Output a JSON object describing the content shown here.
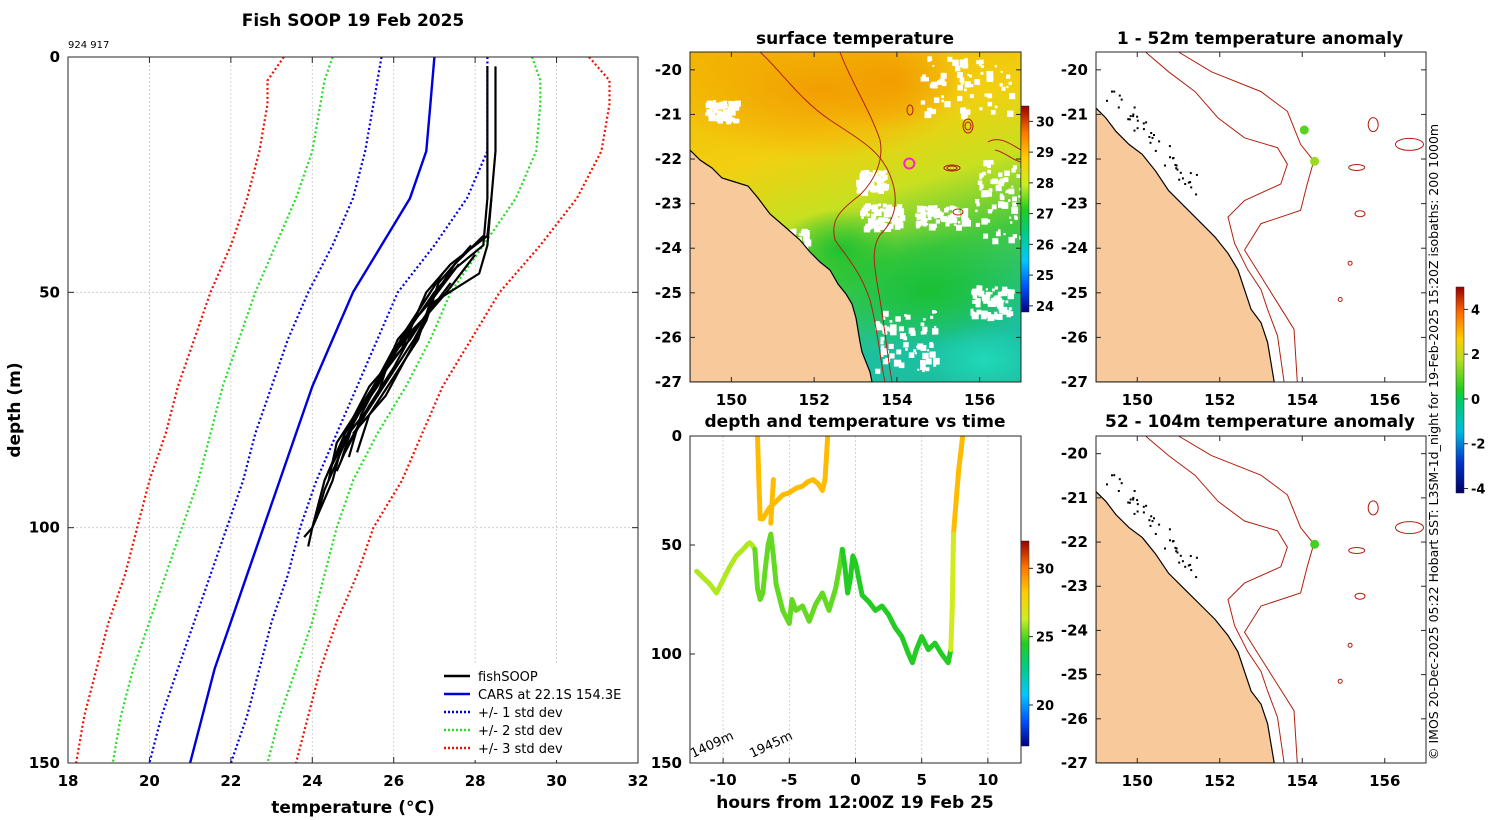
{
  "chart_data": [
    {
      "id": "profile",
      "type": "line",
      "title": "Fish SOOP 19 Feb 2025",
      "subtitle": "924 917",
      "xlabel": "temperature (°C)",
      "ylabel": "depth (m)",
      "xlim": [
        18,
        32
      ],
      "ylim": [
        150,
        0
      ],
      "xticks": [
        18,
        20,
        22,
        24,
        26,
        28,
        30,
        32
      ],
      "yticks": [
        0,
        50,
        100,
        150
      ],
      "grid": true,
      "legend": {
        "placement": "bottom-right",
        "entries": [
          {
            "label": "fishSOOP",
            "color": "#000000",
            "style": "solid"
          },
          {
            "label": "CARS at 22.1S 154.3E",
            "color": "#0000dd",
            "style": "solid"
          },
          {
            "label": "+/- 1 std dev",
            "color": "#0000dd",
            "style": "dotted"
          },
          {
            "label": "+/- 2 std dev",
            "color": "#22dd22",
            "style": "dotted"
          },
          {
            "label": "+/- 3 std dev",
            "color": "#ee1100",
            "style": "dotted"
          }
        ]
      },
      "depths": [
        0,
        5,
        10,
        20,
        30,
        40,
        50,
        60,
        70,
        80,
        90,
        100,
        110,
        120,
        130,
        140,
        150
      ],
      "cars_mean": [
        27.0,
        26.95,
        26.9,
        26.8,
        26.4,
        25.7,
        25.0,
        24.5,
        24.0,
        23.6,
        23.2,
        22.8,
        22.4,
        22.0,
        21.6,
        21.3,
        21.0
      ],
      "std_series": [
        {
          "name": "+/- 1 std dev",
          "color": "#0000dd",
          "values": [
            [
              25.7,
              25.6,
              25.5,
              25.3,
              25.0,
              24.5,
              23.9,
              23.4,
              23.0,
              22.6,
              22.3,
              21.9,
              21.5,
              21.1,
              20.7,
              20.3,
              20.0
            ],
            [
              28.3,
              28.3,
              28.3,
              28.3,
              27.8,
              27.0,
              26.1,
              25.6,
              25.1,
              24.6,
              24.1,
              23.7,
              23.4,
              23.0,
              22.7,
              22.4,
              22.0
            ]
          ]
        },
        {
          "name": "+/- 2 std dev",
          "color": "#22dd22",
          "values": [
            [
              24.5,
              24.3,
              24.2,
              24.0,
              23.6,
              23.1,
              22.6,
              22.2,
              21.8,
              21.5,
              21.2,
              20.8,
              20.4,
              20.0,
              19.6,
              19.3,
              19.1
            ],
            [
              29.4,
              29.6,
              29.6,
              29.5,
              29.0,
              28.2,
              27.4,
              26.9,
              26.3,
              25.6,
              25.0,
              24.6,
              24.3,
              24.0,
              23.6,
              23.2,
              22.9
            ]
          ]
        },
        {
          "name": "+/- 3 std dev",
          "color": "#ee1100",
          "values": [
            [
              23.3,
              22.9,
              22.9,
              22.7,
              22.4,
              22.0,
              21.5,
              21.1,
              20.7,
              20.4,
              20.0,
              19.7,
              19.4,
              19.0,
              18.7,
              18.4,
              18.2
            ],
            [
              30.8,
              31.3,
              31.3,
              31.1,
              30.5,
              29.6,
              28.6,
              27.9,
              27.2,
              26.7,
              26.2,
              25.5,
              25.1,
              24.6,
              24.2,
              23.9,
              23.6
            ]
          ]
        }
      ],
      "fishsoop_profiles": [
        {
          "depth": [
            2,
            10,
            20,
            30,
            40,
            46,
            52,
            60,
            70,
            80,
            90,
            100,
            104
          ],
          "temp": [
            28.5,
            28.5,
            28.5,
            28.4,
            28.3,
            28.1,
            27.0,
            26.4,
            25.4,
            24.8,
            24.5,
            24.0,
            23.9
          ]
        },
        {
          "depth": [
            2,
            15,
            30,
            40,
            45,
            50,
            60,
            70,
            80,
            90,
            100,
            102
          ],
          "temp": [
            28.3,
            28.3,
            28.3,
            28.2,
            27.5,
            27.0,
            26.2,
            25.6,
            24.8,
            24.3,
            24.0,
            23.8
          ]
        },
        {
          "depth": [
            30,
            38,
            44,
            50,
            58,
            66,
            76,
            85
          ],
          "temp": [
            28.4,
            28.3,
            27.4,
            26.8,
            26.4,
            25.8,
            25.2,
            24.9
          ]
        },
        {
          "depth": [
            38,
            44,
            52,
            60,
            68,
            76,
            84
          ],
          "temp": [
            28.2,
            27.5,
            26.9,
            26.6,
            26.0,
            25.4,
            25.1
          ]
        },
        {
          "depth": [
            40,
            48,
            56,
            64,
            72,
            80
          ],
          "temp": [
            27.9,
            27.1,
            26.8,
            26.3,
            25.8,
            25.0
          ]
        },
        {
          "depth": [
            42,
            50,
            58,
            66,
            74,
            82,
            88
          ],
          "temp": [
            28.0,
            27.3,
            26.5,
            26.0,
            25.4,
            24.9,
            24.6
          ]
        },
        {
          "depth": [
            44,
            52,
            60,
            68,
            76,
            84,
            92,
            98
          ],
          "temp": [
            27.6,
            26.9,
            26.1,
            25.7,
            25.1,
            24.7,
            24.3,
            24.1
          ]
        },
        {
          "depth": [
            46,
            54,
            62,
            70,
            78,
            86
          ],
          "temp": [
            27.2,
            26.6,
            26.2,
            25.5,
            25.0,
            24.7
          ]
        },
        {
          "depth": [
            48,
            56,
            64,
            72,
            80,
            88
          ],
          "temp": [
            27.4,
            26.7,
            25.9,
            25.6,
            24.9,
            24.4
          ]
        },
        {
          "depth": [
            50,
            58,
            66,
            74,
            82,
            90
          ],
          "temp": [
            26.9,
            26.3,
            25.8,
            25.2,
            24.6,
            24.4
          ]
        },
        {
          "depth": [
            52,
            60,
            68,
            76,
            84
          ],
          "temp": [
            27.0,
            26.5,
            25.9,
            25.3,
            24.8
          ]
        },
        {
          "depth": [
            55,
            62,
            70,
            78,
            86
          ],
          "temp": [
            26.8,
            26.0,
            25.5,
            25.0,
            24.5
          ]
        }
      ]
    },
    {
      "id": "sst_map",
      "type": "heatmap",
      "title": "surface temperature",
      "xlim": [
        149,
        157
      ],
      "ylim": [
        -27,
        -19.6
      ],
      "xticks": [
        150,
        152,
        154,
        156
      ],
      "xtick_labels": [
        "150",
        "152",
        "154",
        "156"
      ],
      "yticks": [
        -20,
        -21,
        -22,
        -23,
        -24,
        -25,
        -26,
        -27
      ],
      "ytick_labels": [
        "-20",
        "-21",
        "-22",
        "-23",
        "-24",
        "-25",
        "-26",
        "-27"
      ],
      "colorbar": {
        "range": [
          23.8,
          30.5
        ],
        "ticks": [
          24,
          25,
          26,
          27,
          28,
          29,
          30
        ],
        "tick_labels": [
          "24",
          "25",
          "26",
          "27",
          "28",
          "29",
          "30"
        ]
      },
      "marker": {
        "lon": 154.3,
        "lat": -22.1,
        "color": "#ff22cc"
      }
    },
    {
      "id": "time_section",
      "type": "scatter",
      "title": "depth and temperature vs time",
      "xlabel": "hours from 12:00Z 19 Feb 25",
      "xlim": [
        -12.5,
        12.5
      ],
      "ylim": [
        150,
        0
      ],
      "xticks": [
        -10,
        -5,
        0,
        5,
        10
      ],
      "xtick_labels": [
        "-10",
        "-5",
        "0",
        "5",
        "10"
      ],
      "yticks": [
        0,
        50,
        100,
        150
      ],
      "ytick_labels": [
        "0",
        "50",
        "100",
        "150"
      ],
      "annotations": [
        "1409m",
        "1945m"
      ],
      "colorbar": {
        "range": [
          17,
          32
        ],
        "ticks": [
          20,
          25,
          30
        ],
        "tick_labels": [
          "20",
          "25",
          "30"
        ]
      },
      "tracks": [
        {
          "hours": [
            -7.4,
            -7.3,
            -7.2,
            -7.0,
            -6.5,
            -6.0,
            -5.5,
            -5.0,
            -4.5,
            -4.0,
            -3.6,
            -3.2,
            -2.8,
            -2.5,
            -2.3,
            -2.2,
            -2.1
          ],
          "depth": [
            0,
            20,
            38,
            38,
            33,
            30,
            27,
            26,
            24,
            23,
            21,
            20,
            22,
            25,
            20,
            10,
            0
          ],
          "temp": 28.6
        },
        {
          "hours": [
            -6.4,
            -6.3,
            -6.2
          ],
          "depth": [
            40,
            30,
            20
          ],
          "temp": 28.6
        },
        {
          "hours": [
            7.4,
            7.6,
            7.8,
            8.0,
            8.1
          ],
          "depth": [
            45,
            30,
            15,
            5,
            0
          ],
          "temp": 28.6
        }
      ],
      "dives": [
        {
          "hours": [
            -12,
            -11.5,
            -11,
            -10.5,
            -10,
            -9.5,
            -9,
            -8.5,
            -8.2,
            -8.0,
            -7.8,
            -7.6
          ],
          "depth": [
            62,
            65,
            68,
            72,
            66,
            60,
            55,
            52,
            50,
            49,
            50,
            52
          ],
          "temp": 26.0
        },
        {
          "hours": [
            -7.6,
            -7.4,
            -7.2,
            -7.0,
            -6.8,
            -6.6,
            -6.4,
            -6.2,
            -6.0,
            -5.5,
            -5.0,
            -4.8,
            -4.5,
            -4.0,
            -3.5,
            -3.0,
            -2.5,
            -2.0,
            -1.5,
            -1.2,
            -1.0
          ],
          "depth": [
            52,
            70,
            75,
            72,
            60,
            50,
            45,
            55,
            68,
            80,
            86,
            75,
            80,
            78,
            85,
            77,
            72,
            80,
            70,
            60,
            52
          ],
          "temp": 25.2
        },
        {
          "hours": [
            -1.0,
            -0.8,
            -0.6,
            -0.4,
            -0.2,
            0,
            0.5,
            1.0,
            1.5,
            2.0,
            2.5,
            3.0,
            3.5,
            4.0,
            4.3,
            4.6,
            5.0,
            5.5,
            6.0,
            6.5,
            7.0,
            7.2
          ],
          "depth": [
            52,
            60,
            72,
            66,
            55,
            58,
            73,
            76,
            80,
            78,
            82,
            88,
            92,
            100,
            104,
            98,
            92,
            98,
            95,
            100,
            104,
            98
          ],
          "temp": 24.5
        },
        {
          "hours": [
            7.2,
            7.3,
            7.4
          ],
          "depth": [
            98,
            80,
            45
          ],
          "temp": 26.5
        }
      ]
    },
    {
      "id": "anom_map_shallow",
      "type": "heatmap",
      "title": "1 - 52m temperature anomaly",
      "xlim": [
        149,
        157
      ],
      "ylim": [
        -27,
        -19.6
      ],
      "xticks": [
        150,
        152,
        154,
        156
      ],
      "xtick_labels": [
        "150",
        "152",
        "154",
        "156"
      ],
      "yticks": [
        -20,
        -21,
        -22,
        -23,
        -24,
        -25,
        -26,
        -27
      ],
      "ytick_labels": [
        "-20",
        "-21",
        "-22",
        "-23",
        "-24",
        "-25",
        "-26",
        "-27"
      ],
      "points": [
        {
          "lon": 154.05,
          "lat": -21.35,
          "anomaly": 0.9
        },
        {
          "lon": 154.3,
          "lat": -22.05,
          "anomaly": 1.5
        }
      ]
    },
    {
      "id": "anom_map_deep",
      "type": "heatmap",
      "title": "52 - 104m temperature anomaly",
      "xlim": [
        149,
        157
      ],
      "ylim": [
        -27,
        -19.6
      ],
      "xticks": [
        150,
        152,
        154,
        156
      ],
      "xtick_labels": [
        "150",
        "152",
        "154",
        "156"
      ],
      "yticks": [
        -20,
        -21,
        -22,
        -23,
        -24,
        -25,
        -26,
        -27
      ],
      "ytick_labels": [
        "-20",
        "-21",
        "-22",
        "-23",
        "-24",
        "-25",
        "-26",
        "-27"
      ],
      "points": [
        {
          "lon": 154.3,
          "lat": -22.05,
          "anomaly": 0.7
        }
      ]
    },
    {
      "id": "anom_colorbar",
      "type": "colorbar",
      "range": [
        -4.2,
        5
      ],
      "ticks": [
        -4,
        -2,
        0,
        2,
        4
      ],
      "tick_labels": [
        "-4",
        "-2",
        "0",
        "2",
        "4"
      ]
    }
  ],
  "side_caption": "© IMOS 20-Dec-2025 05:22 Hobart SST: L3SM-1d_night for 19-Feb-2025 15:20Z isobaths: 200  1000m",
  "colors": {
    "land": "#f7c99b",
    "isobath": "#cc2200",
    "coast": "#000000"
  }
}
